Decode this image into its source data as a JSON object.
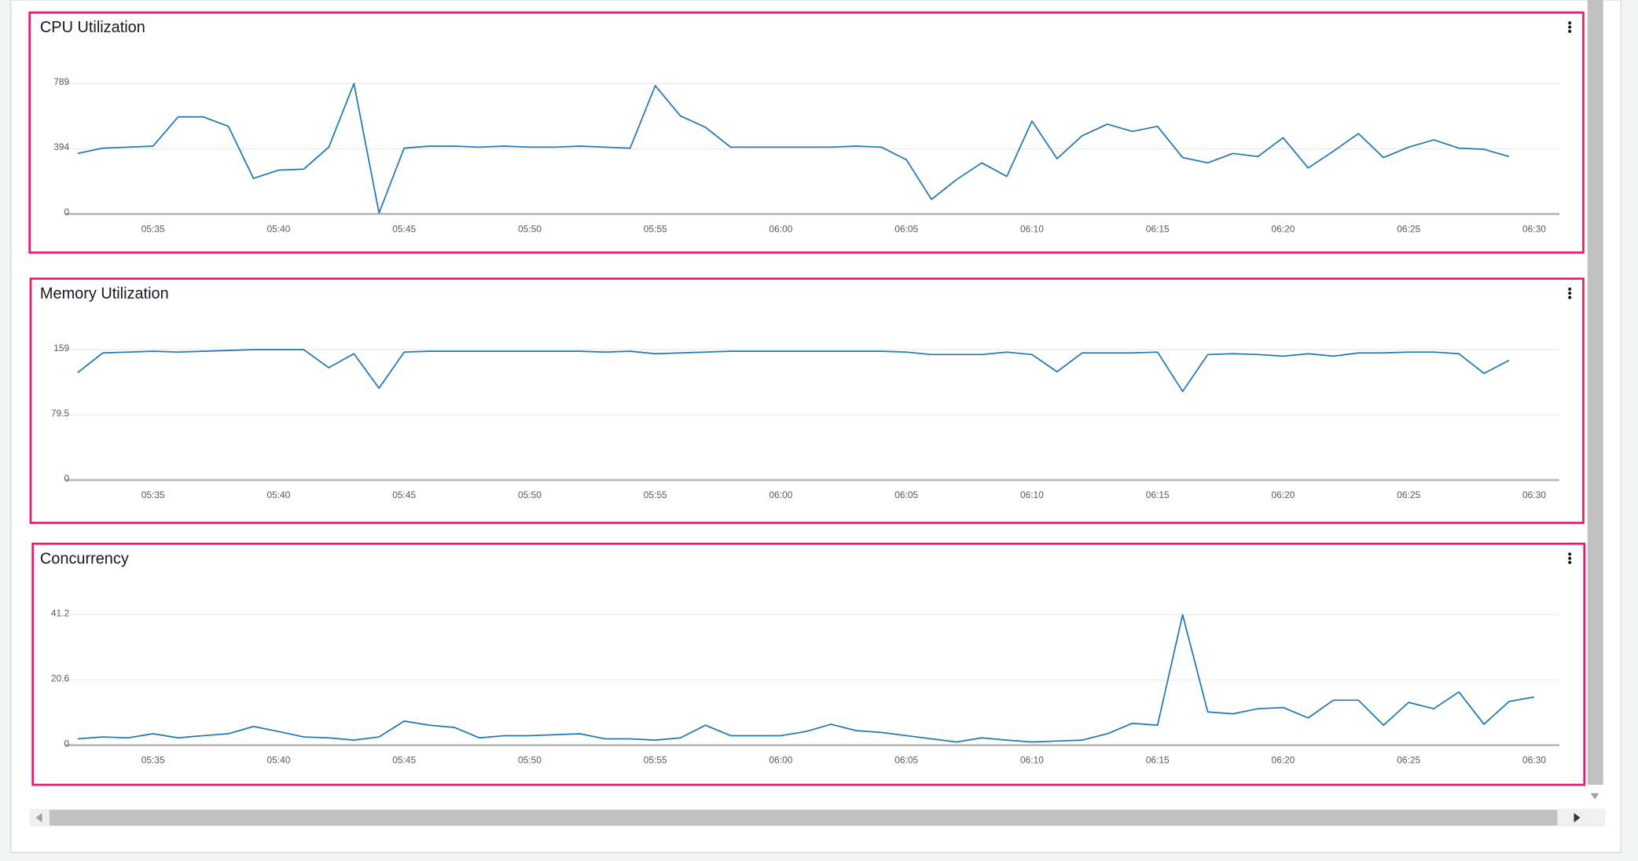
{
  "chart_data": [
    {
      "type": "line",
      "title": "CPU Utilization",
      "color": "#1f77b4",
      "grid": true,
      "x": [
        "05:32",
        "05:33",
        "05:34",
        "05:35",
        "05:36",
        "05:37",
        "05:38",
        "05:39",
        "05:40",
        "05:41",
        "05:42",
        "05:43",
        "05:44",
        "05:45",
        "05:46",
        "05:47",
        "05:48",
        "05:49",
        "05:50",
        "05:51",
        "05:52",
        "05:53",
        "05:54",
        "05:55",
        "05:56",
        "05:57",
        "05:58",
        "05:59",
        "06:00",
        "06:01",
        "06:02",
        "06:03",
        "06:04",
        "06:05",
        "06:06",
        "06:07",
        "06:08",
        "06:09",
        "06:10",
        "06:11",
        "06:12",
        "06:13",
        "06:14",
        "06:15",
        "06:16",
        "06:17",
        "06:18",
        "06:19",
        "06:20",
        "06:21",
        "06:22",
        "06:23",
        "06:24",
        "06:25",
        "06:26",
        "06:27",
        "06:28",
        "06:29"
      ],
      "values": [
        366,
        398,
        404,
        410,
        587,
        587,
        530,
        215,
        265,
        271,
        404,
        789,
        6,
        398,
        410,
        410,
        404,
        410,
        404,
        404,
        410,
        404,
        398,
        776,
        593,
        524,
        404,
        404,
        404,
        404,
        404,
        410,
        404,
        328,
        88,
        208,
        309,
        227,
        562,
        334,
        473,
        543,
        499,
        530,
        341,
        309,
        366,
        347,
        461,
        278,
        379,
        486,
        341,
        404,
        448,
        398,
        391,
        347
      ],
      "xlim": [
        "05:31",
        "06:31"
      ],
      "xticks": [
        "05:35",
        "05:40",
        "05:45",
        "05:50",
        "05:55",
        "06:00",
        "06:05",
        "06:10",
        "06:15",
        "06:20",
        "06:25",
        "06:30"
      ],
      "ylim": [
        0,
        789
      ],
      "yticks": [
        0,
        394,
        789
      ]
    },
    {
      "type": "line",
      "title": "Memory Utilization",
      "color": "#1f77b4",
      "grid": true,
      "x": [
        "05:32",
        "05:33",
        "05:34",
        "05:35",
        "05:36",
        "05:37",
        "05:38",
        "05:39",
        "05:40",
        "05:41",
        "05:42",
        "05:43",
        "05:44",
        "05:45",
        "05:46",
        "05:47",
        "05:48",
        "05:49",
        "05:50",
        "05:51",
        "05:52",
        "05:53",
        "05:54",
        "05:55",
        "05:56",
        "05:57",
        "05:58",
        "05:59",
        "06:00",
        "06:01",
        "06:02",
        "06:03",
        "06:04",
        "06:05",
        "06:06",
        "06:07",
        "06:08",
        "06:09",
        "06:10",
        "06:11",
        "06:12",
        "06:13",
        "06:14",
        "06:15",
        "06:16",
        "06:17",
        "06:18",
        "06:19",
        "06:20",
        "06:21",
        "06:22",
        "06:23",
        "06:24",
        "06:25",
        "06:26",
        "06:27",
        "06:28",
        "06:29"
      ],
      "values": [
        131,
        155,
        156,
        157,
        156,
        157,
        158,
        159,
        159,
        159,
        137,
        154,
        112,
        156,
        157,
        157,
        157,
        157,
        157,
        157,
        157,
        156,
        157,
        154,
        155,
        156,
        157,
        157,
        157,
        157,
        157,
        157,
        157,
        156,
        153,
        153,
        153,
        156,
        153,
        132,
        155,
        155,
        155,
        156,
        108,
        153,
        154,
        153,
        151,
        154,
        151,
        155,
        155,
        156,
        156,
        154,
        130,
        146
      ],
      "xlim": [
        "05:31",
        "06:31"
      ],
      "xticks": [
        "05:35",
        "05:40",
        "05:45",
        "05:50",
        "05:55",
        "06:00",
        "06:05",
        "06:10",
        "06:15",
        "06:20",
        "06:25",
        "06:30"
      ],
      "ylim": [
        0,
        159
      ],
      "yticks": [
        0,
        79.5,
        159
      ]
    },
    {
      "type": "line",
      "title": "Concurrency",
      "color": "#1f77b4",
      "grid": true,
      "x": [
        "05:32",
        "05:33",
        "05:34",
        "05:35",
        "05:36",
        "05:37",
        "05:38",
        "05:39",
        "05:40",
        "05:41",
        "05:42",
        "05:43",
        "05:44",
        "05:45",
        "05:46",
        "05:47",
        "05:48",
        "05:49",
        "05:50",
        "05:51",
        "05:52",
        "05:53",
        "05:54",
        "05:55",
        "05:56",
        "05:57",
        "05:58",
        "05:59",
        "06:00",
        "06:01",
        "06:02",
        "06:03",
        "06:04",
        "06:05",
        "06:06",
        "06:07",
        "06:08",
        "06:09",
        "06:10",
        "06:11",
        "06:12",
        "06:13",
        "06:14",
        "06:15",
        "06:16",
        "06:17",
        "06:18",
        "06:19",
        "06:20",
        "06:21",
        "06:22",
        "06:23",
        "06:24",
        "06:25",
        "06:26",
        "06:27",
        "06:28",
        "06:29",
        "06:30"
      ],
      "values": [
        2.0,
        2.6,
        2.3,
        3.6,
        2.3,
        3.0,
        3.6,
        5.9,
        4.3,
        2.6,
        2.3,
        1.6,
        2.6,
        7.6,
        6.3,
        5.6,
        2.3,
        3.0,
        3.0,
        3.3,
        3.6,
        2.0,
        2.0,
        1.6,
        2.3,
        6.3,
        3.0,
        3.0,
        3.0,
        4.3,
        6.6,
        4.6,
        4.0,
        3.0,
        2.0,
        1.0,
        2.3,
        1.6,
        1.0,
        1.3,
        1.6,
        3.6,
        6.9,
        6.3,
        41.2,
        10.5,
        9.9,
        11.5,
        11.9,
        8.6,
        14.2,
        14.2,
        6.3,
        13.5,
        11.5,
        16.8,
        6.6,
        13.8,
        15.2
      ],
      "xlim": [
        "05:31",
        "06:31"
      ],
      "xticks": [
        "05:35",
        "05:40",
        "05:45",
        "05:50",
        "05:55",
        "06:00",
        "06:05",
        "06:10",
        "06:15",
        "06:20",
        "06:25",
        "06:30"
      ],
      "ylim": [
        0,
        41.2
      ],
      "yticks": [
        0,
        20.6,
        41.2
      ]
    }
  ]
}
